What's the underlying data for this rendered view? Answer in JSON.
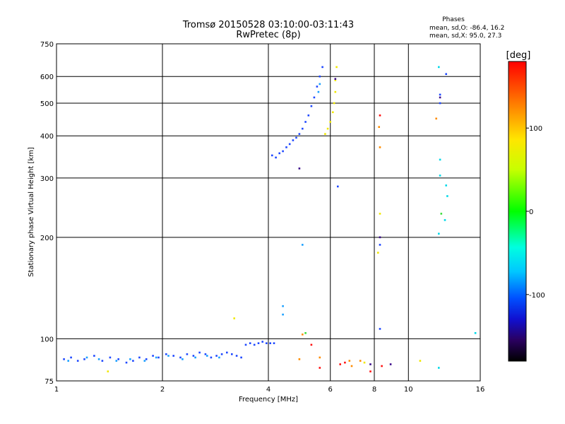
{
  "chart_data": {
    "type": "scatter",
    "title": "Tromsø 20150528 03:10:00-03:11:43",
    "subtitle": "RwPretec (8p)",
    "xlabel": "Frequency [MHz]",
    "ylabel": "Stationary phase Virtual Height [km]",
    "x_scale": "log",
    "y_scale": "log",
    "xlim": [
      1,
      16
    ],
    "ylim": [
      75,
      750
    ],
    "x_ticks": [
      1,
      2,
      4,
      6,
      8,
      10,
      16
    ],
    "y_ticks": [
      75,
      100,
      200,
      300,
      400,
      500,
      600,
      750
    ],
    "x_tick_labels": [
      "1",
      "2",
      "4",
      "6",
      "8",
      "10",
      "16"
    ],
    "y_tick_labels": [
      "75",
      "100",
      "200",
      "300",
      "400",
      "500",
      "600",
      "750"
    ],
    "grid": true,
    "phases_info": {
      "title": "Phases",
      "line1": "mean, sd,O: -86.4, 16.2",
      "line2": "mean, sd,X: 95.0, 27.3"
    },
    "colorbar": {
      "unit_label": "[deg]",
      "range": [
        -180,
        180
      ],
      "ticks": [
        100,
        0,
        -100
      ],
      "tick_labels": [
        "100",
        "0",
        "-100"
      ]
    },
    "series": [
      {
        "phase_deg": -100,
        "color": "#1e48ff",
        "points": [
          [
            1.05,
            87
          ],
          [
            1.1,
            88
          ],
          [
            1.15,
            86
          ],
          [
            1.2,
            87
          ],
          [
            1.28,
            89
          ],
          [
            1.35,
            86
          ],
          [
            1.42,
            88
          ],
          [
            1.5,
            87
          ],
          [
            1.58,
            85
          ],
          [
            1.65,
            86
          ],
          [
            1.72,
            88
          ],
          [
            1.8,
            87
          ],
          [
            1.88,
            89
          ],
          [
            1.95,
            88
          ],
          [
            2.05,
            90
          ],
          [
            2.15,
            89
          ],
          [
            2.25,
            88
          ],
          [
            2.35,
            90
          ],
          [
            2.45,
            89
          ],
          [
            2.55,
            91
          ],
          [
            2.65,
            90
          ],
          [
            2.75,
            88
          ],
          [
            2.85,
            89
          ],
          [
            2.95,
            90
          ],
          [
            3.05,
            91
          ],
          [
            3.15,
            90
          ],
          [
            3.25,
            89
          ],
          [
            3.35,
            88
          ],
          [
            3.45,
            96
          ],
          [
            3.55,
            97
          ],
          [
            3.65,
            96
          ],
          [
            3.75,
            97
          ],
          [
            3.85,
            98
          ],
          [
            3.95,
            97
          ],
          [
            4.05,
            97
          ],
          [
            4.15,
            97
          ],
          [
            4.1,
            350
          ],
          [
            4.2,
            345
          ],
          [
            4.3,
            355
          ],
          [
            4.4,
            360
          ],
          [
            4.5,
            370
          ],
          [
            4.6,
            378
          ],
          [
            4.7,
            388
          ],
          [
            4.8,
            395
          ],
          [
            4.9,
            405
          ],
          [
            5.0,
            420
          ],
          [
            5.1,
            440
          ],
          [
            5.2,
            460
          ],
          [
            5.3,
            490
          ],
          [
            5.4,
            520
          ],
          [
            5.5,
            560
          ],
          [
            5.6,
            600
          ],
          [
            5.7,
            640
          ],
          [
            6.3,
            283
          ],
          [
            8.3,
            190
          ],
          [
            8.3,
            107
          ],
          [
            12.3,
            530
          ],
          [
            12.3,
            500
          ],
          [
            12.8,
            610
          ]
        ]
      },
      {
        "phase_deg": -80,
        "color": "#1aa0ff",
        "points": [
          [
            1.08,
            86
          ],
          [
            1.22,
            88
          ],
          [
            1.32,
            87
          ],
          [
            1.48,
            86
          ],
          [
            1.62,
            87
          ],
          [
            1.78,
            86
          ],
          [
            1.92,
            88
          ],
          [
            2.08,
            89
          ],
          [
            2.28,
            87
          ],
          [
            2.48,
            88
          ],
          [
            2.68,
            89
          ],
          [
            2.9,
            88
          ],
          [
            4.4,
            125
          ],
          [
            4.4,
            118
          ],
          [
            5.0,
            190
          ],
          [
            5.6,
            570
          ],
          [
            5.55,
            540
          ]
        ]
      },
      {
        "phase_deg": -40,
        "color": "#00d8e8",
        "points": [
          [
            12.2,
            640
          ],
          [
            12.3,
            340
          ],
          [
            12.3,
            305
          ],
          [
            12.8,
            285
          ],
          [
            12.9,
            265
          ],
          [
            12.2,
            205
          ],
          [
            12.7,
            225
          ],
          [
            12.2,
            82
          ],
          [
            15.5,
            104
          ]
        ]
      },
      {
        "phase_deg": 20,
        "color": "#3cdf3c",
        "points": [
          [
            12.4,
            235
          ],
          [
            5.1,
            104
          ]
        ]
      },
      {
        "phase_deg": 100,
        "color": "#f0e800",
        "points": [
          [
            5.8,
            405
          ],
          [
            5.9,
            420
          ],
          [
            6.0,
            440
          ],
          [
            6.1,
            470
          ],
          [
            6.15,
            500
          ],
          [
            6.2,
            540
          ],
          [
            6.2,
            585
          ],
          [
            6.25,
            640
          ],
          [
            1.4,
            80
          ],
          [
            3.2,
            115
          ],
          [
            7.5,
            85
          ],
          [
            8.2,
            180
          ],
          [
            8.3,
            235
          ],
          [
            10.8,
            86
          ]
        ]
      },
      {
        "phase_deg": 140,
        "color": "#ff8c00",
        "points": [
          [
            5.0,
            103
          ],
          [
            4.9,
            87
          ],
          [
            5.6,
            88
          ],
          [
            8.25,
            425
          ],
          [
            8.3,
            370
          ],
          [
            6.8,
            86
          ],
          [
            6.9,
            83
          ],
          [
            7.3,
            86
          ],
          [
            12.0,
            450
          ]
        ]
      },
      {
        "phase_deg": 170,
        "color": "#ff1010",
        "points": [
          [
            5.6,
            82
          ],
          [
            6.4,
            84
          ],
          [
            6.6,
            85
          ],
          [
            8.3,
            460
          ],
          [
            8.4,
            83
          ],
          [
            7.8,
            80
          ],
          [
            5.3,
            96
          ]
        ]
      },
      {
        "phase_deg": -160,
        "color": "#3a0a8a",
        "points": [
          [
            4.9,
            320
          ],
          [
            8.3,
            200
          ],
          [
            6.2,
            590
          ],
          [
            7.8,
            84
          ],
          [
            8.9,
            84
          ],
          [
            12.3,
            520
          ]
        ]
      }
    ]
  }
}
